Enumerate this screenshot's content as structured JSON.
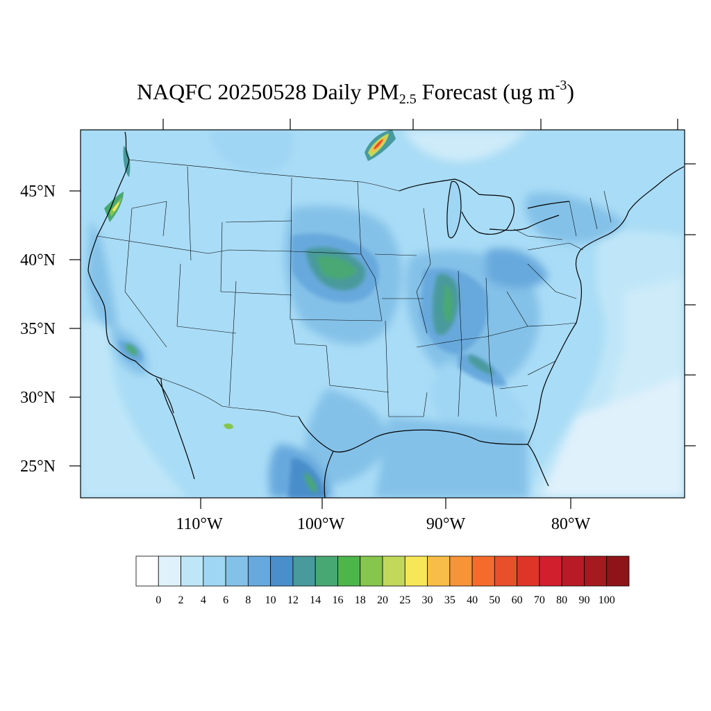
{
  "title": {
    "prefix": "NAQFC 20250528 Daily PM",
    "subscript": "2.5",
    "middle": " Forecast (ug m",
    "superscript": "-3",
    "suffix": ")"
  },
  "map": {
    "projection": "lambert-conformal",
    "region": "CONUS",
    "lat_labels": [
      "45°N",
      "40°N",
      "35°N",
      "30°N",
      "25°N"
    ],
    "lon_labels": [
      "110°W",
      "100°W",
      "90°W",
      "80°W"
    ],
    "background_color": "#a9dcf6",
    "ocean_color": "#dff1fb",
    "state_lines_color": "#000000"
  },
  "colorbar": {
    "labels": [
      "0",
      "2",
      "4",
      "6",
      "8",
      "10",
      "12",
      "14",
      "16",
      "18",
      "20",
      "25",
      "30",
      "35",
      "40",
      "50",
      "60",
      "70",
      "80",
      "90",
      "100"
    ],
    "colors": [
      "#ffffff",
      "#dff2fb",
      "#bfe6f8",
      "#9fd6f4",
      "#84c1e8",
      "#68a9dd",
      "#4a8ecb",
      "#489a9c",
      "#48a873",
      "#4cb64a",
      "#86c54e",
      "#c2d85a",
      "#f8e659",
      "#f8bc48",
      "#f79438",
      "#f56b2c",
      "#e8502c",
      "#de3528",
      "#d11f2e",
      "#b91b26",
      "#a51a1f",
      "#8f1419"
    ]
  },
  "regions": [
    {
      "name": "central-plains-plume",
      "level": 16
    },
    {
      "name": "mississippi-valley-plume",
      "level": 16
    },
    {
      "name": "northern-minnesota-smoke",
      "level": 40
    },
    {
      "name": "pacific-northwest-plume",
      "level": 20
    },
    {
      "name": "southern-california",
      "level": 16
    },
    {
      "name": "northeast-mexico",
      "level": 12
    }
  ]
}
